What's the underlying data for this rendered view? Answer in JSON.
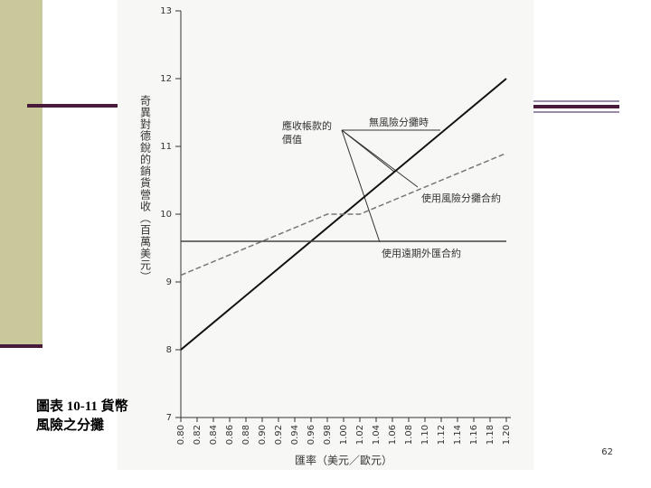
{
  "slide": {
    "caption": "圖表 10-11 貨幣風險之分攤",
    "page_number": "62"
  },
  "chart_data": {
    "type": "line",
    "ylabel": "奇異對德銳的銷貨營收（百萬美元）",
    "xlabel": "匯率（美元／歐元）",
    "annotation": [
      "應收帳款的",
      "價值"
    ],
    "x": [
      0.8,
      0.98,
      1.02,
      1.2
    ],
    "series": [
      {
        "name": "無風險分攤時",
        "color": "#111111",
        "style": "solid",
        "values": [
          8.0,
          9.8,
          10.2,
          12.0
        ]
      },
      {
        "name": "使用風險分攤合約",
        "color": "#777777",
        "style": "dashed",
        "values": [
          9.1,
          10.0,
          10.0,
          10.9
        ]
      },
      {
        "name": "使用遠期外匯合約",
        "color": "#444444",
        "style": "solid",
        "values": [
          9.6,
          9.6,
          9.6,
          9.6
        ]
      }
    ],
    "xlim": [
      0.8,
      1.2
    ],
    "xticks": [
      {
        "value": 0.8,
        "label": "0.80"
      },
      0.82,
      0.84,
      0.86,
      0.88,
      {
        "value": 0.9,
        "label": "0.90"
      },
      0.92,
      0.94,
      0.96,
      0.98,
      {
        "value": 1.0,
        "label": "1.00"
      },
      1.02,
      1.04,
      1.06,
      1.08,
      {
        "value": 1.1,
        "label": "1.10"
      },
      1.12,
      1.14,
      1.16,
      1.18,
      {
        "value": 1.2,
        "label": "1.20"
      }
    ],
    "ylim": [
      7,
      13
    ],
    "yticks": [
      7,
      8,
      9,
      10,
      11,
      12,
      13
    ],
    "grid": false
  }
}
